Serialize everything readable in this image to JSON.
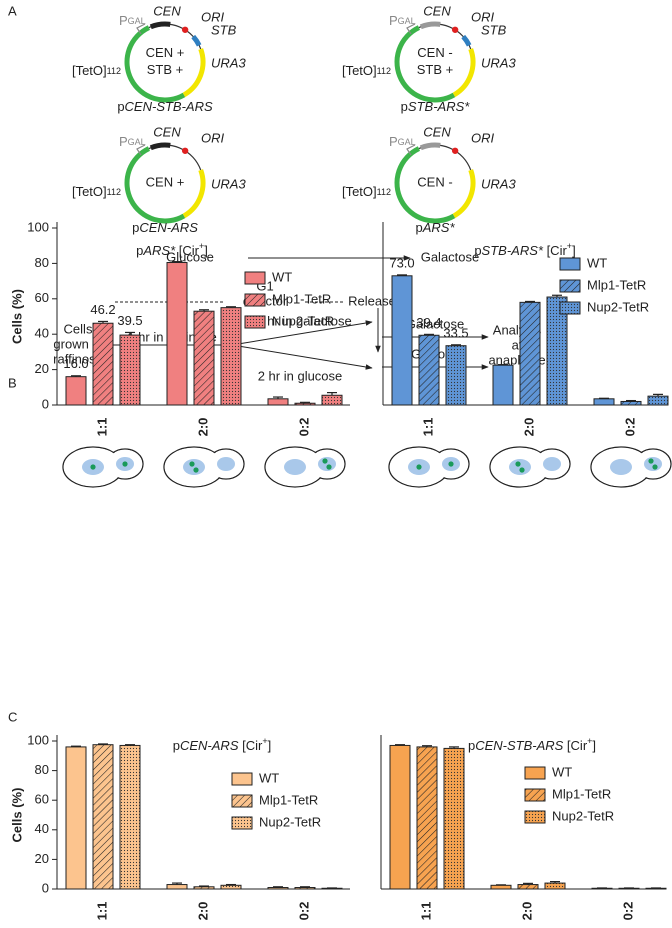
{
  "panel_labels": [
    "A",
    "B",
    "C"
  ],
  "diagram": {
    "plasmids": [
      {
        "promoter": [
          {
            "text": "P"
          },
          {
            "text": "GAL",
            "style": "small"
          }
        ],
        "cen": "CEN",
        "cen_color": "#222",
        "ori": "ORI",
        "stb": "STB",
        "inner": [
          "CEN +",
          "STB +"
        ],
        "marker": "URA3",
        "teto": [
          {
            "text": "[TetO]"
          },
          {
            "text": "112",
            "style": "small"
          }
        ],
        "name": [
          {
            "text": "p"
          },
          {
            "text": "CEN-STB-ARS",
            "style": "italic"
          }
        ]
      },
      {
        "promoter": [
          {
            "text": "P"
          },
          {
            "text": "GAL",
            "style": "small"
          }
        ],
        "cen": "CEN",
        "cen_color": "#999",
        "ori": "ORI",
        "stb": "STB",
        "inner": [
          "CEN -",
          "STB +"
        ],
        "marker": "URA3",
        "teto": [
          {
            "text": "[TetO]"
          },
          {
            "text": "112",
            "style": "small"
          }
        ],
        "name": [
          {
            "text": "p"
          },
          {
            "text": "STB-ARS*",
            "style": "italic"
          }
        ]
      },
      {
        "promoter": [
          {
            "text": "P"
          },
          {
            "text": "GAL",
            "style": "small"
          }
        ],
        "cen": "CEN",
        "cen_color": "#222",
        "ori": "ORI",
        "inner": [
          "CEN +"
        ],
        "marker": "URA3",
        "teto": [
          {
            "text": "[TetO]"
          },
          {
            "text": "112",
            "style": "small"
          }
        ],
        "name": [
          {
            "text": "p"
          },
          {
            "text": "CEN-ARS",
            "style": "italic"
          }
        ]
      },
      {
        "promoter": [
          {
            "text": "P"
          },
          {
            "text": "GAL",
            "style": "small"
          }
        ],
        "cen": "CEN",
        "cen_color": "#999",
        "ori": "ORI",
        "inner": [
          "CEN -"
        ],
        "marker": "URA3",
        "teto": [
          {
            "text": "[TetO]"
          },
          {
            "text": "112",
            "style": "small"
          }
        ],
        "name": [
          {
            "text": "p"
          },
          {
            "text": "ARS*",
            "style": "italic"
          }
        ]
      }
    ],
    "conditions": [
      "Glucose",
      "Galactose"
    ],
    "timeline": {
      "stage": "G1",
      "arrest": "α-factor",
      "release": "Release",
      "start": [
        "Cells",
        "grown in",
        "raffinose"
      ],
      "step1": "1 hr in raffinose",
      "branches": [
        "2 hr in galactose",
        "2 hr in glucose"
      ],
      "media": [
        "Galactose",
        "Glucose"
      ],
      "end": [
        "Analysis",
        "at",
        "anaphase"
      ]
    }
  },
  "chart_data": [
    {
      "type": "bar",
      "title": [
        {
          "text": "p"
        },
        {
          "text": "ARS*",
          "style": "italic"
        },
        {
          "text": " [Cir"
        },
        {
          "text": "+",
          "style": "sup"
        },
        {
          "text": "]"
        }
      ],
      "ylabel": "Cells (%)",
      "categories": [
        "1:1",
        "2:0",
        "0:2"
      ],
      "ylim": [
        0,
        100
      ],
      "yticks": [
        0,
        20,
        40,
        60,
        80,
        100
      ],
      "legend": "upper right",
      "series": [
        {
          "name": "WT",
          "color": "#f08080",
          "pattern": "solid",
          "values": [
            16.0,
            80.5,
            3.5
          ],
          "errors": [
            0.5,
            0.5,
            1
          ],
          "value_labels": [
            "16.0",
            null,
            null
          ]
        },
        {
          "name": "Mlp1-TetR",
          "color": "#f08080",
          "pattern": "hatch",
          "values": [
            46.2,
            53,
            1
          ],
          "errors": [
            1,
            0.8,
            0.5
          ],
          "value_labels": [
            "46.2",
            null,
            null
          ]
        },
        {
          "name": "Nup2-TetR",
          "color": "#f08080",
          "pattern": "dots",
          "values": [
            39.5,
            55,
            5.5
          ],
          "errors": [
            1.5,
            0.5,
            1.5
          ],
          "value_labels": [
            "39.5",
            null,
            null
          ]
        }
      ]
    },
    {
      "type": "bar",
      "title": [
        {
          "text": "p"
        },
        {
          "text": "STB-ARS*",
          "style": "italic"
        },
        {
          "text": " [Cir"
        },
        {
          "text": "+",
          "style": "sup"
        },
        {
          "text": "]"
        }
      ],
      "categories": [
        "1:1",
        "2:0",
        "0:2"
      ],
      "ylim": [
        0,
        100
      ],
      "legend": "upper right",
      "series": [
        {
          "name": "WT",
          "color": "#5f95d6",
          "pattern": "solid",
          "values": [
            73.0,
            22.5,
            3.5
          ],
          "errors": [
            0.5,
            0.3,
            0.3
          ],
          "value_labels": [
            "73.0",
            null,
            null
          ]
        },
        {
          "name": "Mlp1-TetR",
          "color": "#5f95d6",
          "pattern": "hatch",
          "values": [
            39.4,
            58,
            2
          ],
          "errors": [
            0.5,
            0.5,
            0.5
          ],
          "value_labels": [
            "39.4",
            null,
            null
          ]
        },
        {
          "name": "Nup2-TetR",
          "color": "#5f95d6",
          "pattern": "dots",
          "values": [
            33.5,
            61,
            5
          ],
          "errors": [
            0.5,
            1,
            1
          ],
          "value_labels": [
            "33.5",
            null,
            null
          ]
        }
      ]
    },
    {
      "type": "bar",
      "title": [
        {
          "text": "p"
        },
        {
          "text": "CEN-ARS",
          "style": "italic"
        },
        {
          "text": " [Cir"
        },
        {
          "text": "+",
          "style": "sup"
        },
        {
          "text": "]"
        }
      ],
      "ylabel": "Cells (%)",
      "categories": [
        "1:1",
        "2:0",
        "0:2"
      ],
      "ylim": [
        0,
        100
      ],
      "yticks": [
        0,
        20,
        40,
        60,
        80,
        100
      ],
      "legend": "center right",
      "series": [
        {
          "name": "WT",
          "color": "#fcc48e",
          "pattern": "solid",
          "values": [
            96,
            3,
            1
          ],
          "errors": [
            0.5,
            1,
            0.5
          ]
        },
        {
          "name": "Mlp1-TetR",
          "color": "#fcc48e",
          "pattern": "hatch",
          "values": [
            97.5,
            1.5,
            1
          ],
          "errors": [
            0.5,
            0.5,
            0.5
          ]
        },
        {
          "name": "Nup2-TetR",
          "color": "#fcc48e",
          "pattern": "dots",
          "values": [
            97,
            2.5,
            0.5
          ],
          "errors": [
            0.5,
            0.5,
            0.2
          ]
        }
      ]
    },
    {
      "type": "bar",
      "title": [
        {
          "text": "p"
        },
        {
          "text": "CEN-STB-ARS",
          "style": "italic"
        },
        {
          "text": " [Cir"
        },
        {
          "text": "+",
          "style": "sup"
        },
        {
          "text": "]"
        }
      ],
      "categories": [
        "1:1",
        "2:0",
        "0:2"
      ],
      "ylim": [
        0,
        100
      ],
      "legend": "center right",
      "series": [
        {
          "name": "WT",
          "color": "#f7a350",
          "pattern": "solid",
          "values": [
            97,
            2.5,
            0.5
          ],
          "errors": [
            0.5,
            0.3,
            0.2
          ]
        },
        {
          "name": "Mlp1-TetR",
          "color": "#f7a350",
          "pattern": "hatch",
          "values": [
            96,
            3,
            0.5
          ],
          "errors": [
            0.8,
            0.8,
            0.2
          ]
        },
        {
          "name": "Nup2-TetR",
          "color": "#f7a350",
          "pattern": "dots",
          "values": [
            95,
            4,
            0.5
          ],
          "errors": [
            1,
            1,
            0.2
          ]
        }
      ]
    }
  ]
}
